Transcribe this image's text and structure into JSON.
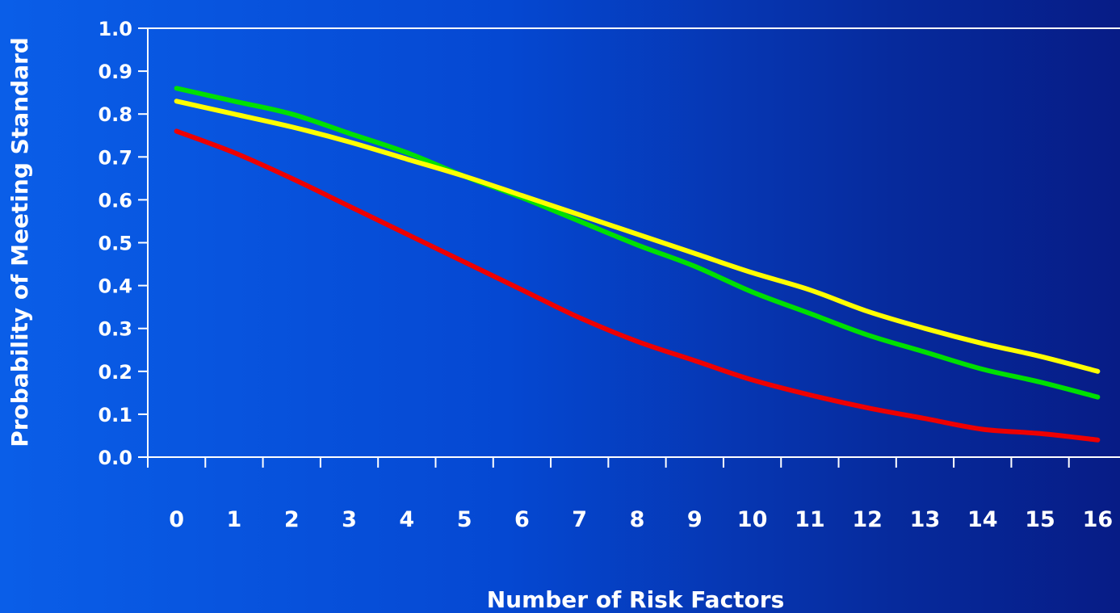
{
  "chart_data": {
    "type": "line",
    "xlabel": "Number of Risk Factors",
    "ylabel": "Probability of Meeting Standard",
    "x": [
      0,
      1,
      2,
      3,
      4,
      5,
      6,
      7,
      8,
      9,
      10,
      11,
      12,
      13,
      14,
      15,
      16
    ],
    "xlim": [
      -0.5,
      16.5
    ],
    "ylim": [
      0.0,
      1.0
    ],
    "yticks": [
      "0.0",
      "0.1",
      "0.2",
      "0.3",
      "0.4",
      "0.5",
      "0.6",
      "0.7",
      "0.8",
      "0.9",
      "1.0"
    ],
    "xticks": [
      "0",
      "1",
      "2",
      "3",
      "4",
      "5",
      "6",
      "7",
      "8",
      "9",
      "10",
      "11",
      "12",
      "13",
      "14",
      "15",
      "16"
    ],
    "grid": false,
    "legend": "none",
    "series": [
      {
        "color": "#00e000",
        "values": [
          0.86,
          0.83,
          0.8,
          0.755,
          0.71,
          0.655,
          0.605,
          0.55,
          0.495,
          0.445,
          0.385,
          0.335,
          0.285,
          0.245,
          0.205,
          0.175,
          0.14
        ]
      },
      {
        "color": "#ffff00",
        "values": [
          0.83,
          0.8,
          0.77,
          0.735,
          0.695,
          0.655,
          0.61,
          0.565,
          0.52,
          0.475,
          0.43,
          0.39,
          0.34,
          0.3,
          0.265,
          0.235,
          0.2
        ]
      },
      {
        "color": "#ee0000",
        "values": [
          0.76,
          0.71,
          0.65,
          0.585,
          0.52,
          0.455,
          0.39,
          0.325,
          0.27,
          0.225,
          0.18,
          0.145,
          0.115,
          0.09,
          0.065,
          0.055,
          0.04
        ]
      }
    ]
  }
}
